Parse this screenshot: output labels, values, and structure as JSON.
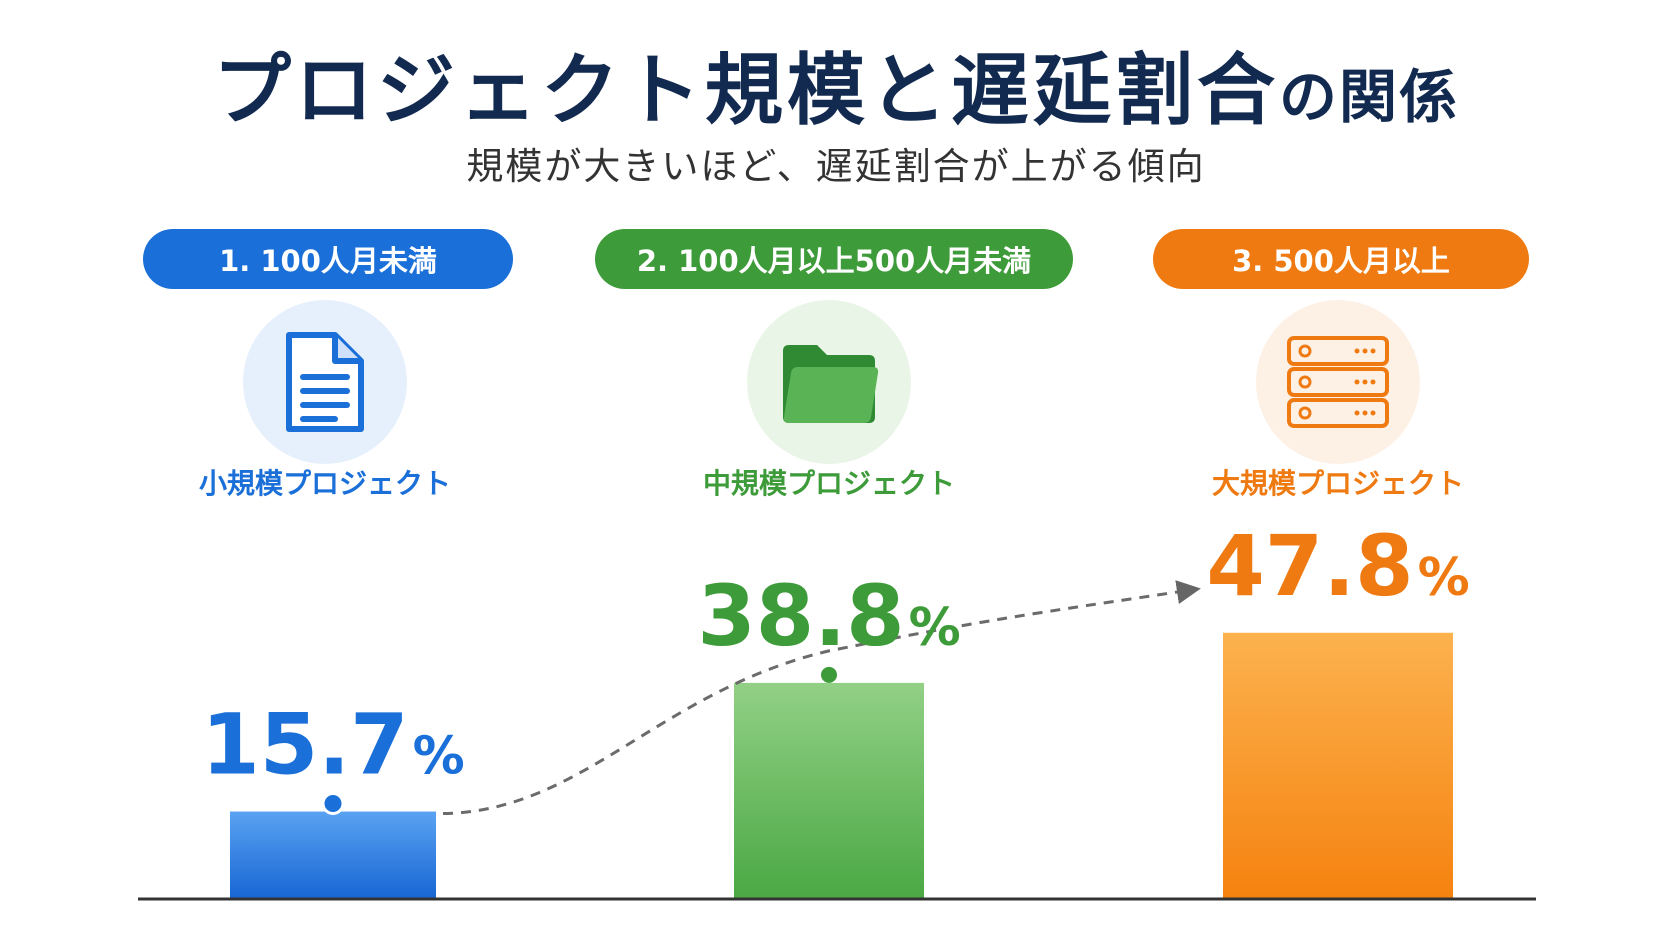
{
  "title_main": "プロジェクト規模と遅延割合",
  "title_tail": "の関係",
  "subtitle": "規模が大きいほど、遅延割合が上がる傾向",
  "colors": {
    "blue": "#1a6fd8",
    "green": "#3e9b3a",
    "orange": "#ef7a12"
  },
  "chart_data": {
    "type": "bar",
    "categories": [
      "1. 100人月未満",
      "2. 100人月以上500人月未満",
      "3. 500人月以上"
    ],
    "category_labels": [
      "小規模プロジェクト",
      "中規模プロジェクト",
      "大規模プロジェクト"
    ],
    "icons": [
      "document-icon",
      "folder-icon",
      "server-icon"
    ],
    "values": [
      15.7,
      38.8,
      47.8
    ],
    "value_labels": [
      "15.7",
      "38.8",
      "47.8"
    ],
    "unit": "%",
    "trend_line": true,
    "grid": false,
    "legend": "none"
  }
}
